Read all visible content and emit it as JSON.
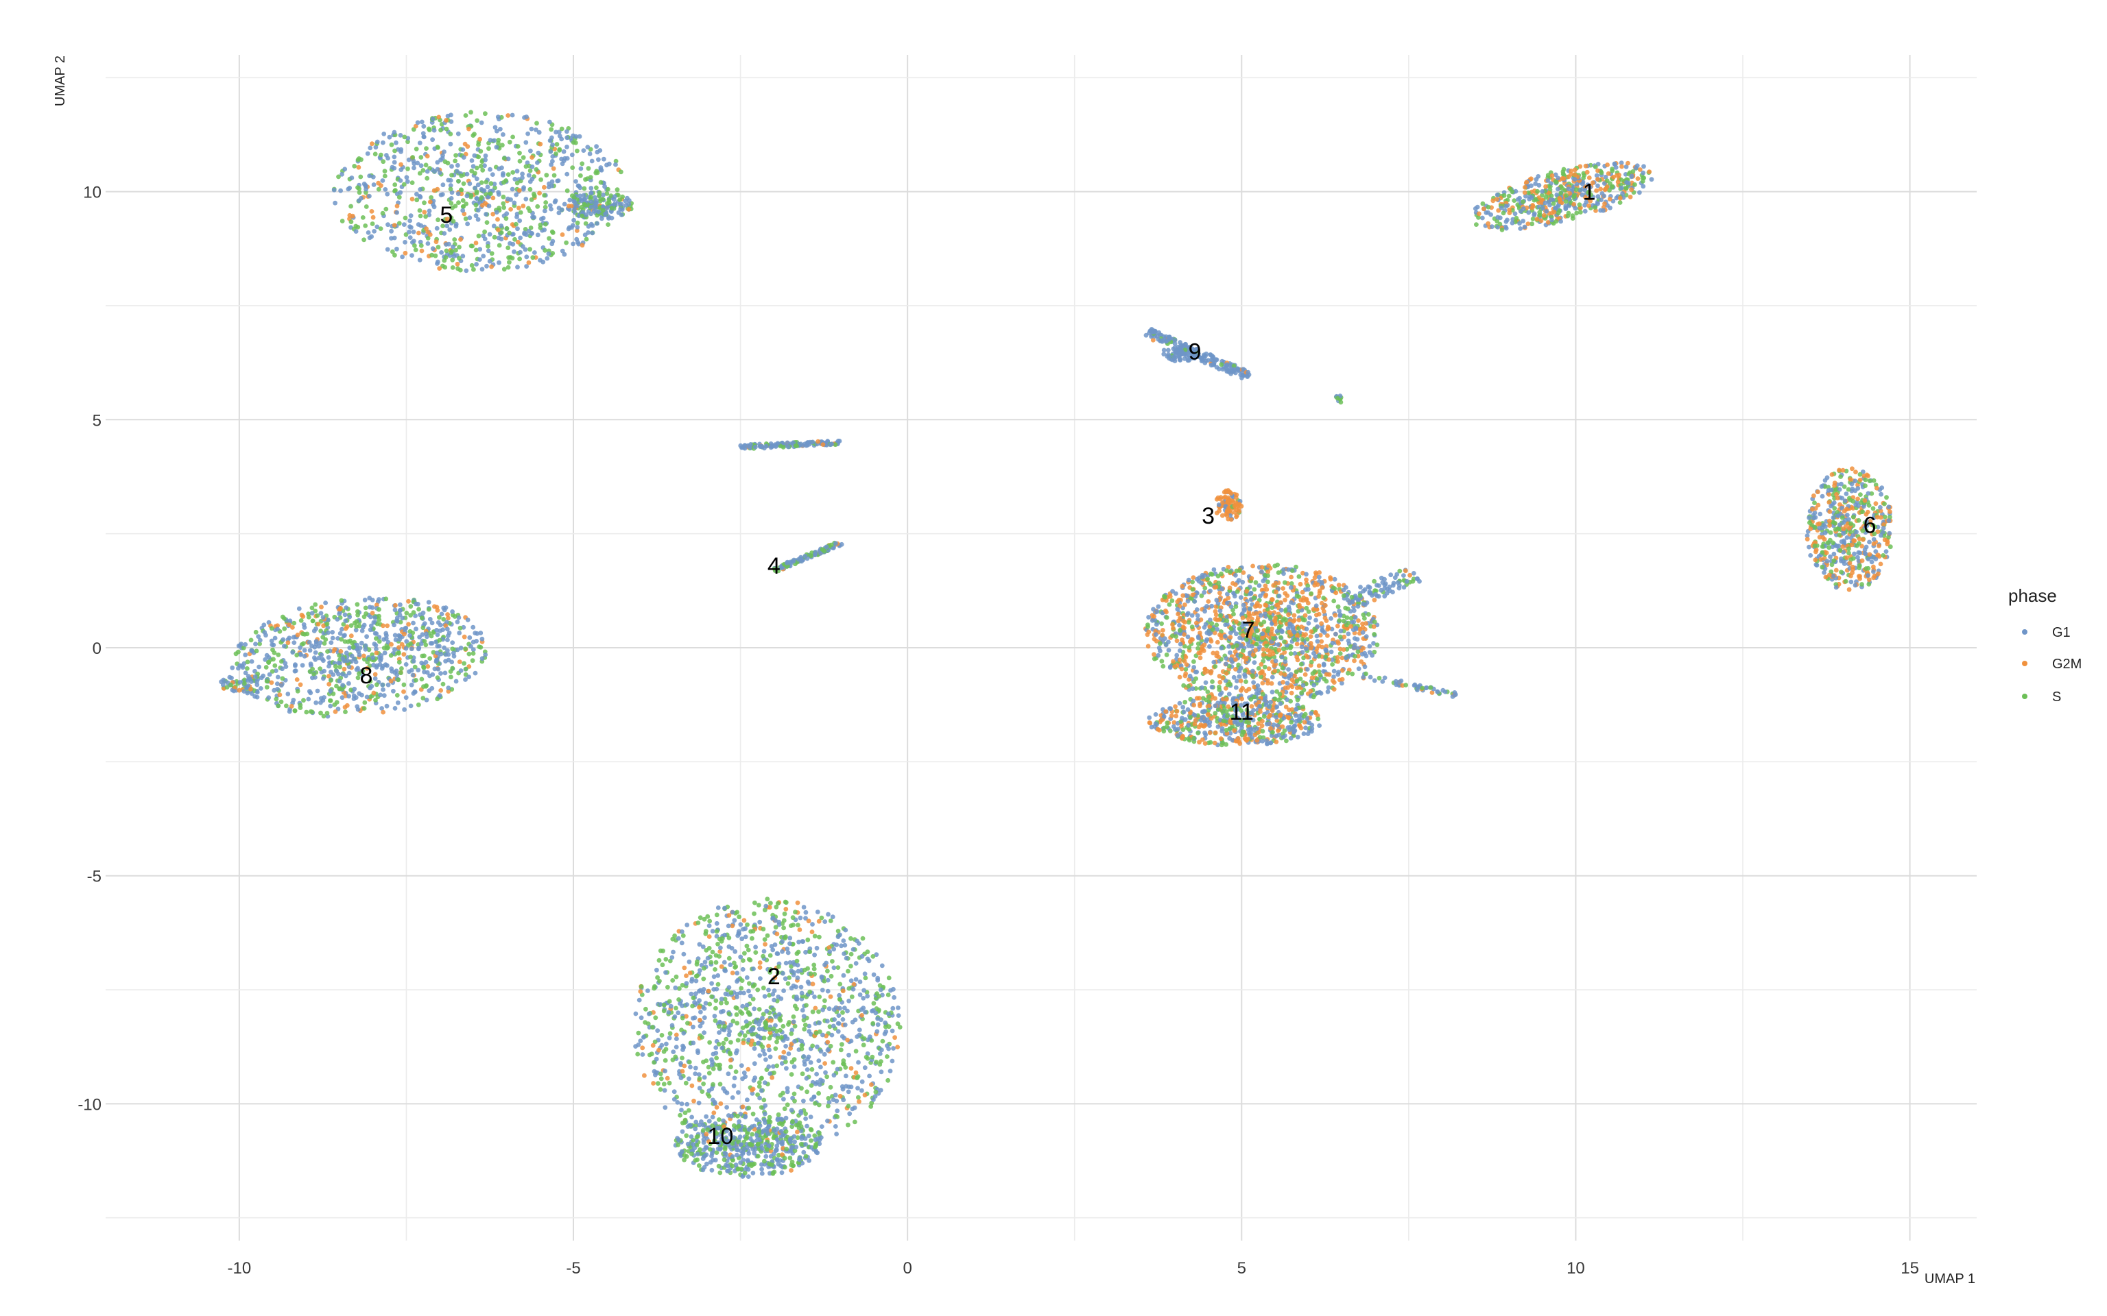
{
  "chart_data": {
    "type": "scatter",
    "xlabel": "UMAP 1",
    "ylabel": "UMAP 2",
    "xlim": [
      -12,
      16
    ],
    "ylim": [
      -13,
      13
    ],
    "x_ticks": [
      -10,
      -5,
      0,
      5,
      10,
      15
    ],
    "y_ticks": [
      -10,
      -5,
      0,
      5,
      10
    ],
    "x_tick_labels": [
      "-10",
      "-5",
      "0",
      "5",
      "10",
      "15"
    ],
    "y_tick_labels": [
      "-10",
      "-5",
      "0",
      "5",
      "10"
    ],
    "grid": true,
    "legend": {
      "title": "phase",
      "placement": "right",
      "entries": [
        {
          "name": "G1",
          "color": "#6f95c8"
        },
        {
          "name": "G2M",
          "color": "#f0913d"
        },
        {
          "name": "S",
          "color": "#6cbf57"
        }
      ]
    },
    "cluster_labels": [
      {
        "text": "1",
        "x": 10.2,
        "y": 10.0
      },
      {
        "text": "2",
        "x": -2.0,
        "y": -7.2
      },
      {
        "text": "3",
        "x": 4.5,
        "y": 2.9
      },
      {
        "text": "4",
        "x": -2.0,
        "y": 1.8
      },
      {
        "text": "5",
        "x": -6.9,
        "y": 9.5
      },
      {
        "text": "6",
        "x": 14.4,
        "y": 2.7
      },
      {
        "text": "7",
        "x": 5.1,
        "y": 0.4
      },
      {
        "text": "8",
        "x": -8.1,
        "y": -0.6
      },
      {
        "text": "9",
        "x": 4.3,
        "y": 6.5
      },
      {
        "text": "10",
        "x": -2.8,
        "y": -10.7
      },
      {
        "text": "11",
        "x": 5.0,
        "y": -1.4
      }
    ],
    "clusters": [
      {
        "id": "5",
        "shape": "blob",
        "cx": -6.4,
        "cy": 10.0,
        "rx": 2.2,
        "ry": 1.75,
        "rot": 4,
        "n": 900,
        "mix": [
          0.5,
          0.1,
          0.4
        ]
      },
      {
        "id": "5b",
        "shape": "blob",
        "cx": -4.6,
        "cy": 9.7,
        "rx": 0.5,
        "ry": 0.3,
        "rot": 0,
        "n": 140,
        "mix": [
          0.6,
          0.05,
          0.35
        ]
      },
      {
        "id": "1",
        "shape": "blob",
        "cx": 9.8,
        "cy": 9.9,
        "rx": 1.45,
        "ry": 0.55,
        "rot": 22,
        "n": 520,
        "mix": [
          0.4,
          0.3,
          0.3
        ]
      },
      {
        "id": "8",
        "shape": "blob",
        "cx": -8.2,
        "cy": -0.2,
        "rx": 1.95,
        "ry": 1.3,
        "rot": 10,
        "n": 850,
        "mix": [
          0.55,
          0.12,
          0.33
        ]
      },
      {
        "id": "8b",
        "shape": "blob",
        "cx": -9.9,
        "cy": -0.8,
        "rx": 0.4,
        "ry": 0.2,
        "rot": 0,
        "n": 60,
        "mix": [
          0.6,
          0.1,
          0.3
        ]
      },
      {
        "id": "2",
        "shape": "blob",
        "cx": -2.1,
        "cy": -8.3,
        "rx": 2.0,
        "ry": 2.8,
        "rot": 0,
        "n": 1300,
        "mix": [
          0.5,
          0.1,
          0.4
        ]
      },
      {
        "id": "10",
        "shape": "blob",
        "cx": -2.4,
        "cy": -10.9,
        "rx": 1.1,
        "ry": 0.7,
        "rot": 0,
        "n": 450,
        "mix": [
          0.55,
          0.05,
          0.4
        ]
      },
      {
        "id": "7",
        "shape": "blob",
        "cx": 5.3,
        "cy": 0.3,
        "rx": 1.75,
        "ry": 1.55,
        "rot": 0,
        "n": 1400,
        "mix": [
          0.35,
          0.4,
          0.25
        ]
      },
      {
        "id": "11",
        "shape": "blob",
        "cx": 4.9,
        "cy": -1.6,
        "rx": 1.3,
        "ry": 0.55,
        "rot": 0,
        "n": 500,
        "mix": [
          0.4,
          0.3,
          0.3
        ]
      },
      {
        "id": "7tail",
        "shape": "line",
        "x1": 6.6,
        "y1": 1.0,
        "x2": 7.6,
        "y2": 1.6,
        "width": 0.2,
        "n": 80,
        "mix": [
          0.8,
          0.05,
          0.15
        ]
      },
      {
        "id": "7tail2",
        "shape": "line",
        "x1": 6.8,
        "y1": -0.6,
        "x2": 8.2,
        "y2": -1.05,
        "width": 0.06,
        "n": 50,
        "mix": [
          0.7,
          0.1,
          0.2
        ]
      },
      {
        "id": "3",
        "shape": "blob",
        "cx": 4.8,
        "cy": 3.1,
        "rx": 0.2,
        "ry": 0.35,
        "rot": 0,
        "n": 90,
        "mix": [
          0.1,
          0.85,
          0.05
        ]
      },
      {
        "id": "6",
        "shape": "blob",
        "cx": 14.1,
        "cy": 2.6,
        "rx": 0.65,
        "ry": 1.35,
        "rot": 0,
        "n": 500,
        "mix": [
          0.35,
          0.35,
          0.3
        ]
      },
      {
        "id": "9",
        "shape": "line",
        "x1": 3.6,
        "y1": 6.9,
        "x2": 5.1,
        "y2": 5.95,
        "width": 0.1,
        "n": 170,
        "mix": [
          0.9,
          0.03,
          0.07
        ]
      },
      {
        "id": "9b",
        "shape": "blob",
        "cx": 4.1,
        "cy": 6.45,
        "rx": 0.3,
        "ry": 0.18,
        "rot": 0,
        "n": 60,
        "mix": [
          0.9,
          0.0,
          0.1
        ]
      },
      {
        "id": "9c",
        "shape": "blob",
        "cx": 6.45,
        "cy": 5.45,
        "rx": 0.05,
        "ry": 0.1,
        "rot": 0,
        "n": 10,
        "mix": [
          0.4,
          0.0,
          0.6
        ]
      },
      {
        "id": "4a",
        "shape": "line",
        "x1": -2.5,
        "y1": 4.4,
        "x2": -1.0,
        "y2": 4.5,
        "width": 0.05,
        "n": 120,
        "mix": [
          0.7,
          0.1,
          0.2
        ]
      },
      {
        "id": "4b",
        "shape": "line",
        "x1": -2.0,
        "y1": 1.7,
        "x2": -1.0,
        "y2": 2.3,
        "width": 0.05,
        "n": 100,
        "mix": [
          0.6,
          0.1,
          0.3
        ]
      }
    ]
  }
}
